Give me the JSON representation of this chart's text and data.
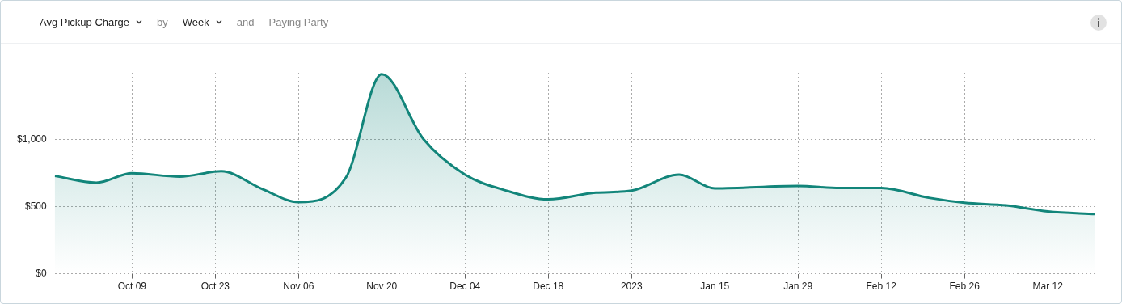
{
  "chart_data": {
    "type": "area",
    "title": "Avg Pickup Charge",
    "annotations": [
      "by",
      "Week",
      "and",
      "Paying Party"
    ],
    "x": [
      "2022-09-26",
      "2022-10-03",
      "2022-10-09",
      "2022-10-17",
      "2022-10-24",
      "2022-10-31",
      "2022-11-06",
      "2022-11-14",
      "2022-11-20",
      "2022-11-27",
      "2022-12-04",
      "2022-12-11",
      "2022-12-18",
      "2022-12-26",
      "2023-01-01",
      "2023-01-09",
      "2023-01-15",
      "2023-01-29",
      "2023-02-05",
      "2023-02-12",
      "2023-02-20",
      "2023-02-26",
      "2023-03-05",
      "2023-03-12",
      "2023-03-20"
    ],
    "series": [
      {
        "color": "#12857a",
        "values": [
          730,
          680,
          750,
          725,
          765,
          630,
          535,
          720,
          1490,
          1005,
          740,
          620,
          555,
          605,
          620,
          740,
          637,
          655,
          640,
          640,
          567,
          530,
          510,
          465,
          445
        ]
      }
    ],
    "xlim": [
      "2022-09-26",
      "2023-03-20"
    ],
    "xticks": [
      {
        "value": "2022-10-09",
        "label": "Oct 09"
      },
      {
        "value": "2022-10-23",
        "label": "Oct 23"
      },
      {
        "value": "2022-11-06",
        "label": "Nov 06"
      },
      {
        "value": "2022-11-20",
        "label": "Nov 20"
      },
      {
        "value": "2022-12-04",
        "label": "Dec 04"
      },
      {
        "value": "2022-12-18",
        "label": "Dec 18"
      },
      {
        "value": "2023-01-01",
        "label": "2023"
      },
      {
        "value": "2023-01-15",
        "label": "Jan 15"
      },
      {
        "value": "2023-01-29",
        "label": "Jan 29"
      },
      {
        "value": "2023-02-12",
        "label": "Feb 12"
      },
      {
        "value": "2023-02-26",
        "label": "Feb 26"
      },
      {
        "value": "2023-03-12",
        "label": "Mar 12"
      }
    ],
    "ylim": [
      0,
      1500
    ],
    "yticks": [
      {
        "value": 0,
        "label": "$0"
      },
      {
        "value": 500,
        "label": "$500"
      },
      {
        "value": 1000,
        "label": "$1,000"
      }
    ],
    "grid": true,
    "legend": false,
    "marker": "none",
    "line_style": "solid"
  }
}
